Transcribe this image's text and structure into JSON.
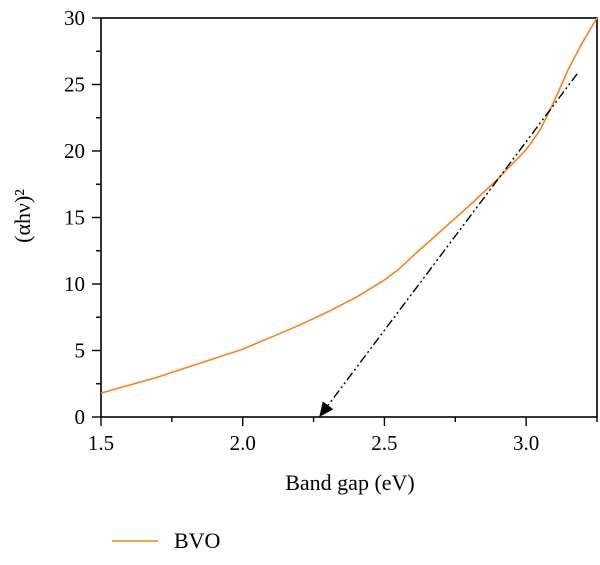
{
  "chart_data": {
    "type": "line",
    "xlabel": "Band gap (eV)",
    "ylabel": "(αhν)²",
    "xlim": [
      1.5,
      3.25
    ],
    "ylim": [
      0,
      30
    ],
    "x_ticks": [
      "1.5",
      "2.0",
      "2.5",
      "3.0"
    ],
    "y_ticks": [
      "0",
      "5",
      "10",
      "15",
      "20",
      "25",
      "30"
    ],
    "grid": false,
    "legend_position": "bottom-left",
    "series": [
      {
        "name": "BVO",
        "color": "#f5821f",
        "x": [
          1.5,
          1.6,
          1.7,
          1.8,
          1.9,
          2.0,
          2.1,
          2.2,
          2.3,
          2.4,
          2.5,
          2.55,
          2.6,
          2.7,
          2.8,
          2.9,
          3.0,
          3.05,
          3.1,
          3.15,
          3.2,
          3.25
        ],
        "y": [
          1.8,
          2.4,
          3.0,
          3.7,
          4.4,
          5.1,
          6.0,
          6.9,
          7.9,
          9.0,
          10.3,
          11.1,
          12.1,
          14.0,
          15.9,
          17.9,
          20.1,
          21.6,
          23.8,
          26.2,
          28.2,
          30.0
        ]
      },
      {
        "color": "#000000",
        "style": "dash-dot-dot",
        "x": [
          3.18,
          2.27
        ],
        "y": [
          25.8,
          0
        ],
        "arrow_at_end": true
      }
    ],
    "extrapolated_band_gap": 2.27
  }
}
